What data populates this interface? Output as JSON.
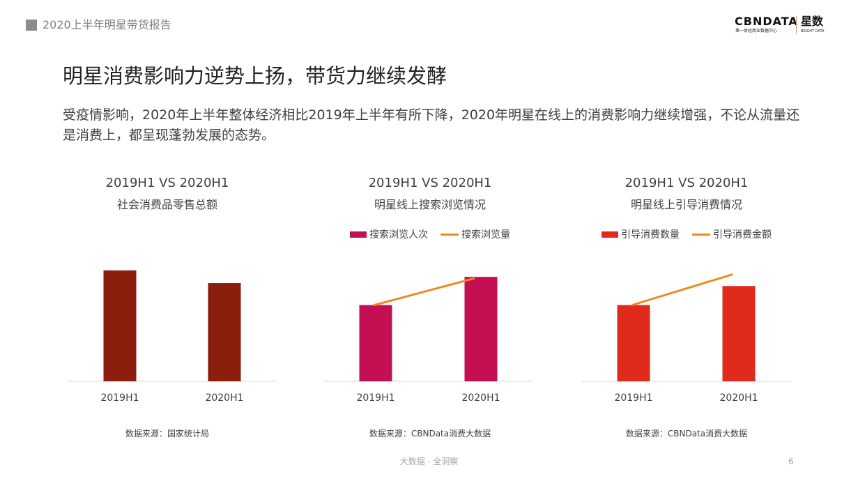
{
  "header": {
    "title": "2020上半年明星带货报告"
  },
  "brand": {
    "cbn": "CBNDATA",
    "cbn_sub": "第一财经商业数据中心",
    "xs": "星数",
    "xs_sub": "BRIGHT DATA"
  },
  "main_title": "明星消费影响力逆势上扬，带货力继续发酵",
  "description": "受疫情影响，2020年上半年整体经济相比2019年上半年有所下降，2020年明星在线上的消费影响力继续增强，不论从流量还是消费上，都呈现蓬勃发展的态势。",
  "colors": {
    "chart1_bar": "#8b1e0d",
    "chart2_bar": "#c40f52",
    "chart3_bar": "#e02b1c",
    "line": "#ee8a1c",
    "axis": "#d9d9d9"
  },
  "chart_data": [
    {
      "type": "bar",
      "title": "2019H1 VS 2020H1",
      "subtitle": "社会消费品零售总额",
      "categories": [
        "2019H1",
        "2020H1"
      ],
      "series": [
        {
          "values": [
            100,
            88.6
          ]
        }
      ],
      "ylim": [
        0,
        110
      ],
      "source": "数据来源：国家统计局"
    },
    {
      "type": "bar",
      "title": "2019H1 VS 2020H1",
      "subtitle": "明星线上搜索浏览情况",
      "categories": [
        "2019H1",
        "2020H1"
      ],
      "series": [
        {
          "name": "搜索浏览人次",
          "kind": "bar",
          "values": [
            100,
            137
          ]
        },
        {
          "name": "搜索浏览量",
          "kind": "line",
          "values": [
            100,
            135
          ]
        }
      ],
      "ylim": [
        0,
        160
      ],
      "source": "数据来源：CBNData消费大数据"
    },
    {
      "type": "bar",
      "title": "2019H1 VS 2020H1",
      "subtitle": "明星线上引导消费情况",
      "categories": [
        "2019H1",
        "2020H1"
      ],
      "series": [
        {
          "name": "引导消费数量",
          "kind": "bar",
          "values": [
            100,
            125
          ]
        },
        {
          "name": "引导消费金额",
          "kind": "line",
          "values": [
            100,
            140
          ]
        }
      ],
      "ylim": [
        0,
        160
      ],
      "source": "数据来源：CBNData消费大数据"
    }
  ],
  "footer": {
    "text": "大数据 · 全洞察",
    "page": "6"
  }
}
